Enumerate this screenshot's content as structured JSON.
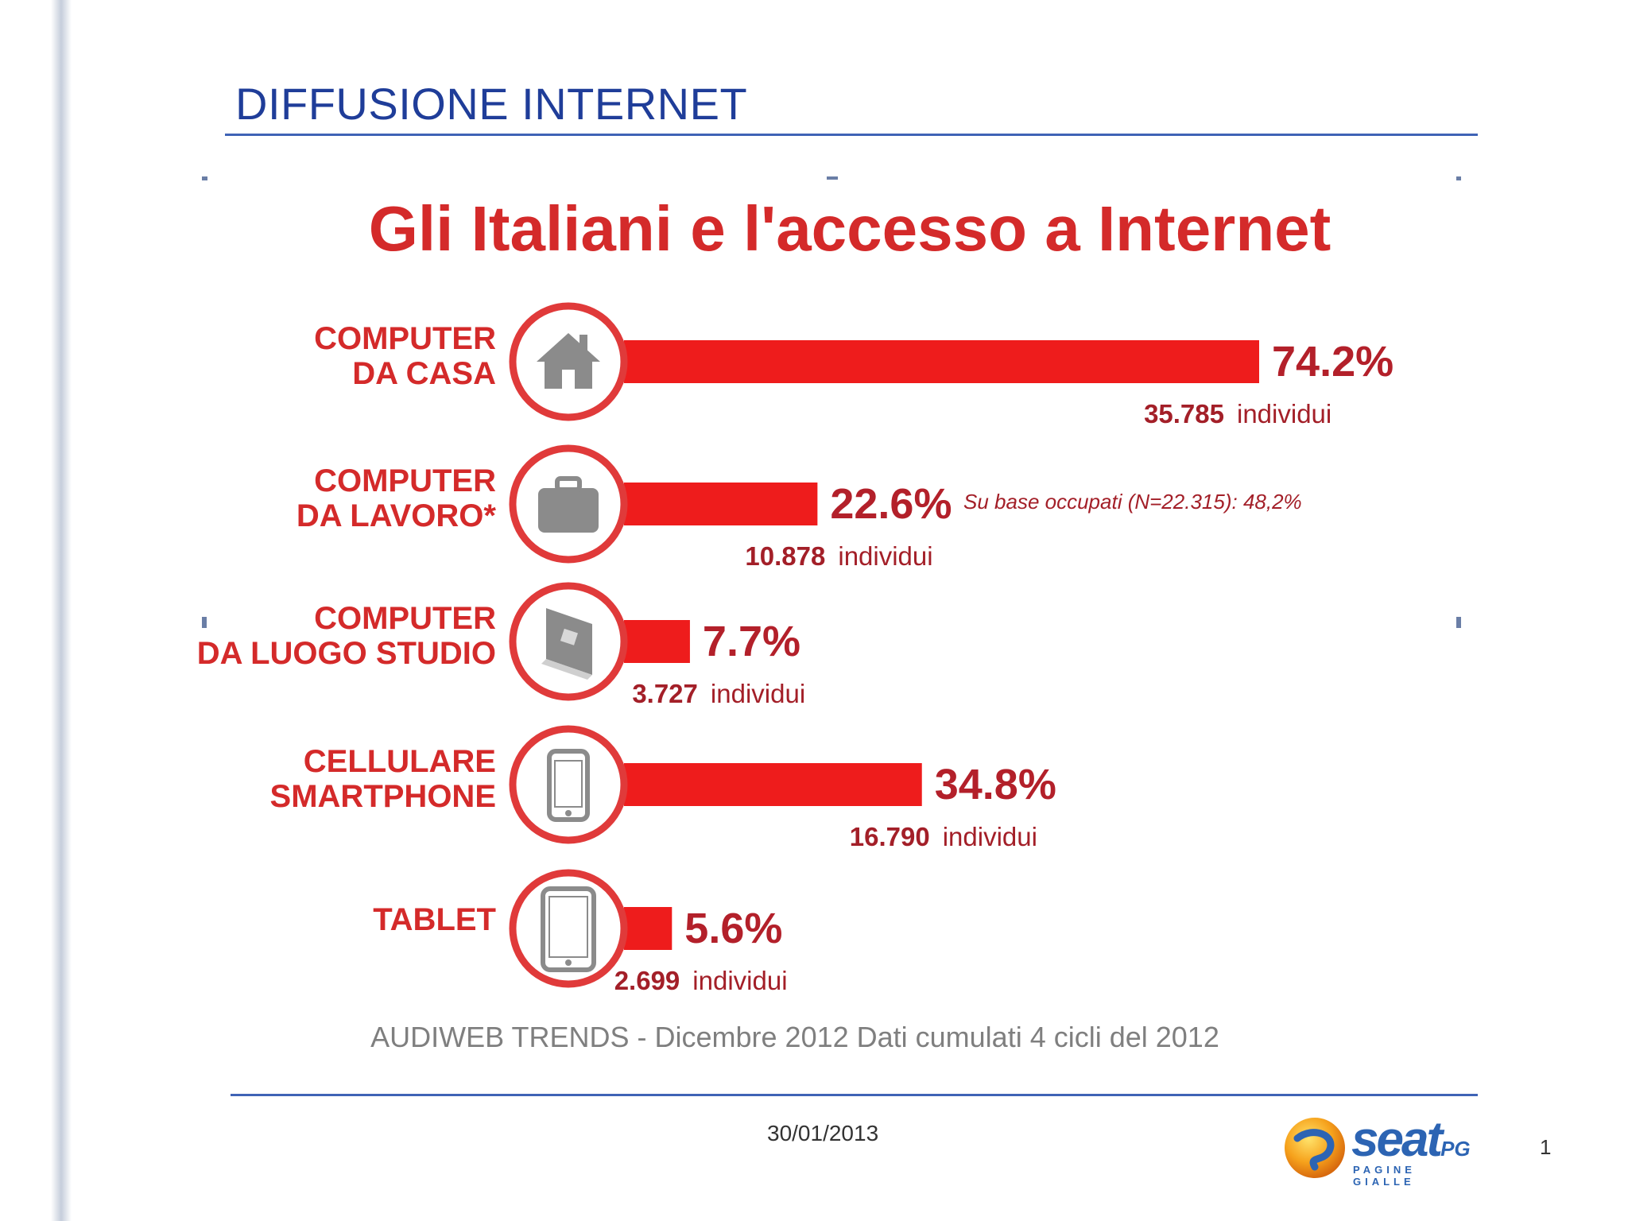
{
  "slide": {
    "title": "DIFFUSIONE INTERNET",
    "date": "30/01/2013",
    "page_number": "1",
    "logo": {
      "brand_text": "seat",
      "brand_suffix": "PG",
      "subtitle": "PAGINE GIALLE"
    }
  },
  "colors": {
    "bar": "#ee1c1c",
    "label": "#d42a2a",
    "value": "#b3202a",
    "icon": "#8b8b8b",
    "title_blue": "#1f3d99"
  },
  "chart_data": {
    "type": "bar",
    "orientation": "horizontal",
    "title": "Gli Italiani e l'accesso a Internet",
    "unit": "%",
    "value_unit_label": "individui",
    "xlim": [
      0,
      100
    ],
    "categories": [
      {
        "label_lines": [
          "COMPUTER",
          "DA CASA"
        ],
        "icon": "house-icon",
        "value": 74.2,
        "value_label": "74.2%",
        "count": "35.785"
      },
      {
        "label_lines": [
          "COMPUTER",
          "DA LAVORO*"
        ],
        "icon": "briefcase-icon",
        "value": 22.6,
        "value_label": "22.6%",
        "count": "10.878",
        "note": "Su base occupati (N=22.315): 48,2%"
      },
      {
        "label_lines": [
          "COMPUTER",
          "DA LUOGO STUDIO"
        ],
        "icon": "book-icon",
        "value": 7.7,
        "value_label": "7.7%",
        "count": "3.727"
      },
      {
        "label_lines": [
          "CELLULARE",
          "SMARTPHONE"
        ],
        "icon": "smartphone-icon",
        "value": 34.8,
        "value_label": "34.8%",
        "count": "16.790"
      },
      {
        "label_lines": [
          "TABLET"
        ],
        "icon": "tablet-icon",
        "value": 5.6,
        "value_label": "5.6%",
        "count": "2.699"
      }
    ],
    "source": "AUDIWEB TRENDS - Dicembre 2012 Dati cumulati 4 cicli del 2012"
  }
}
